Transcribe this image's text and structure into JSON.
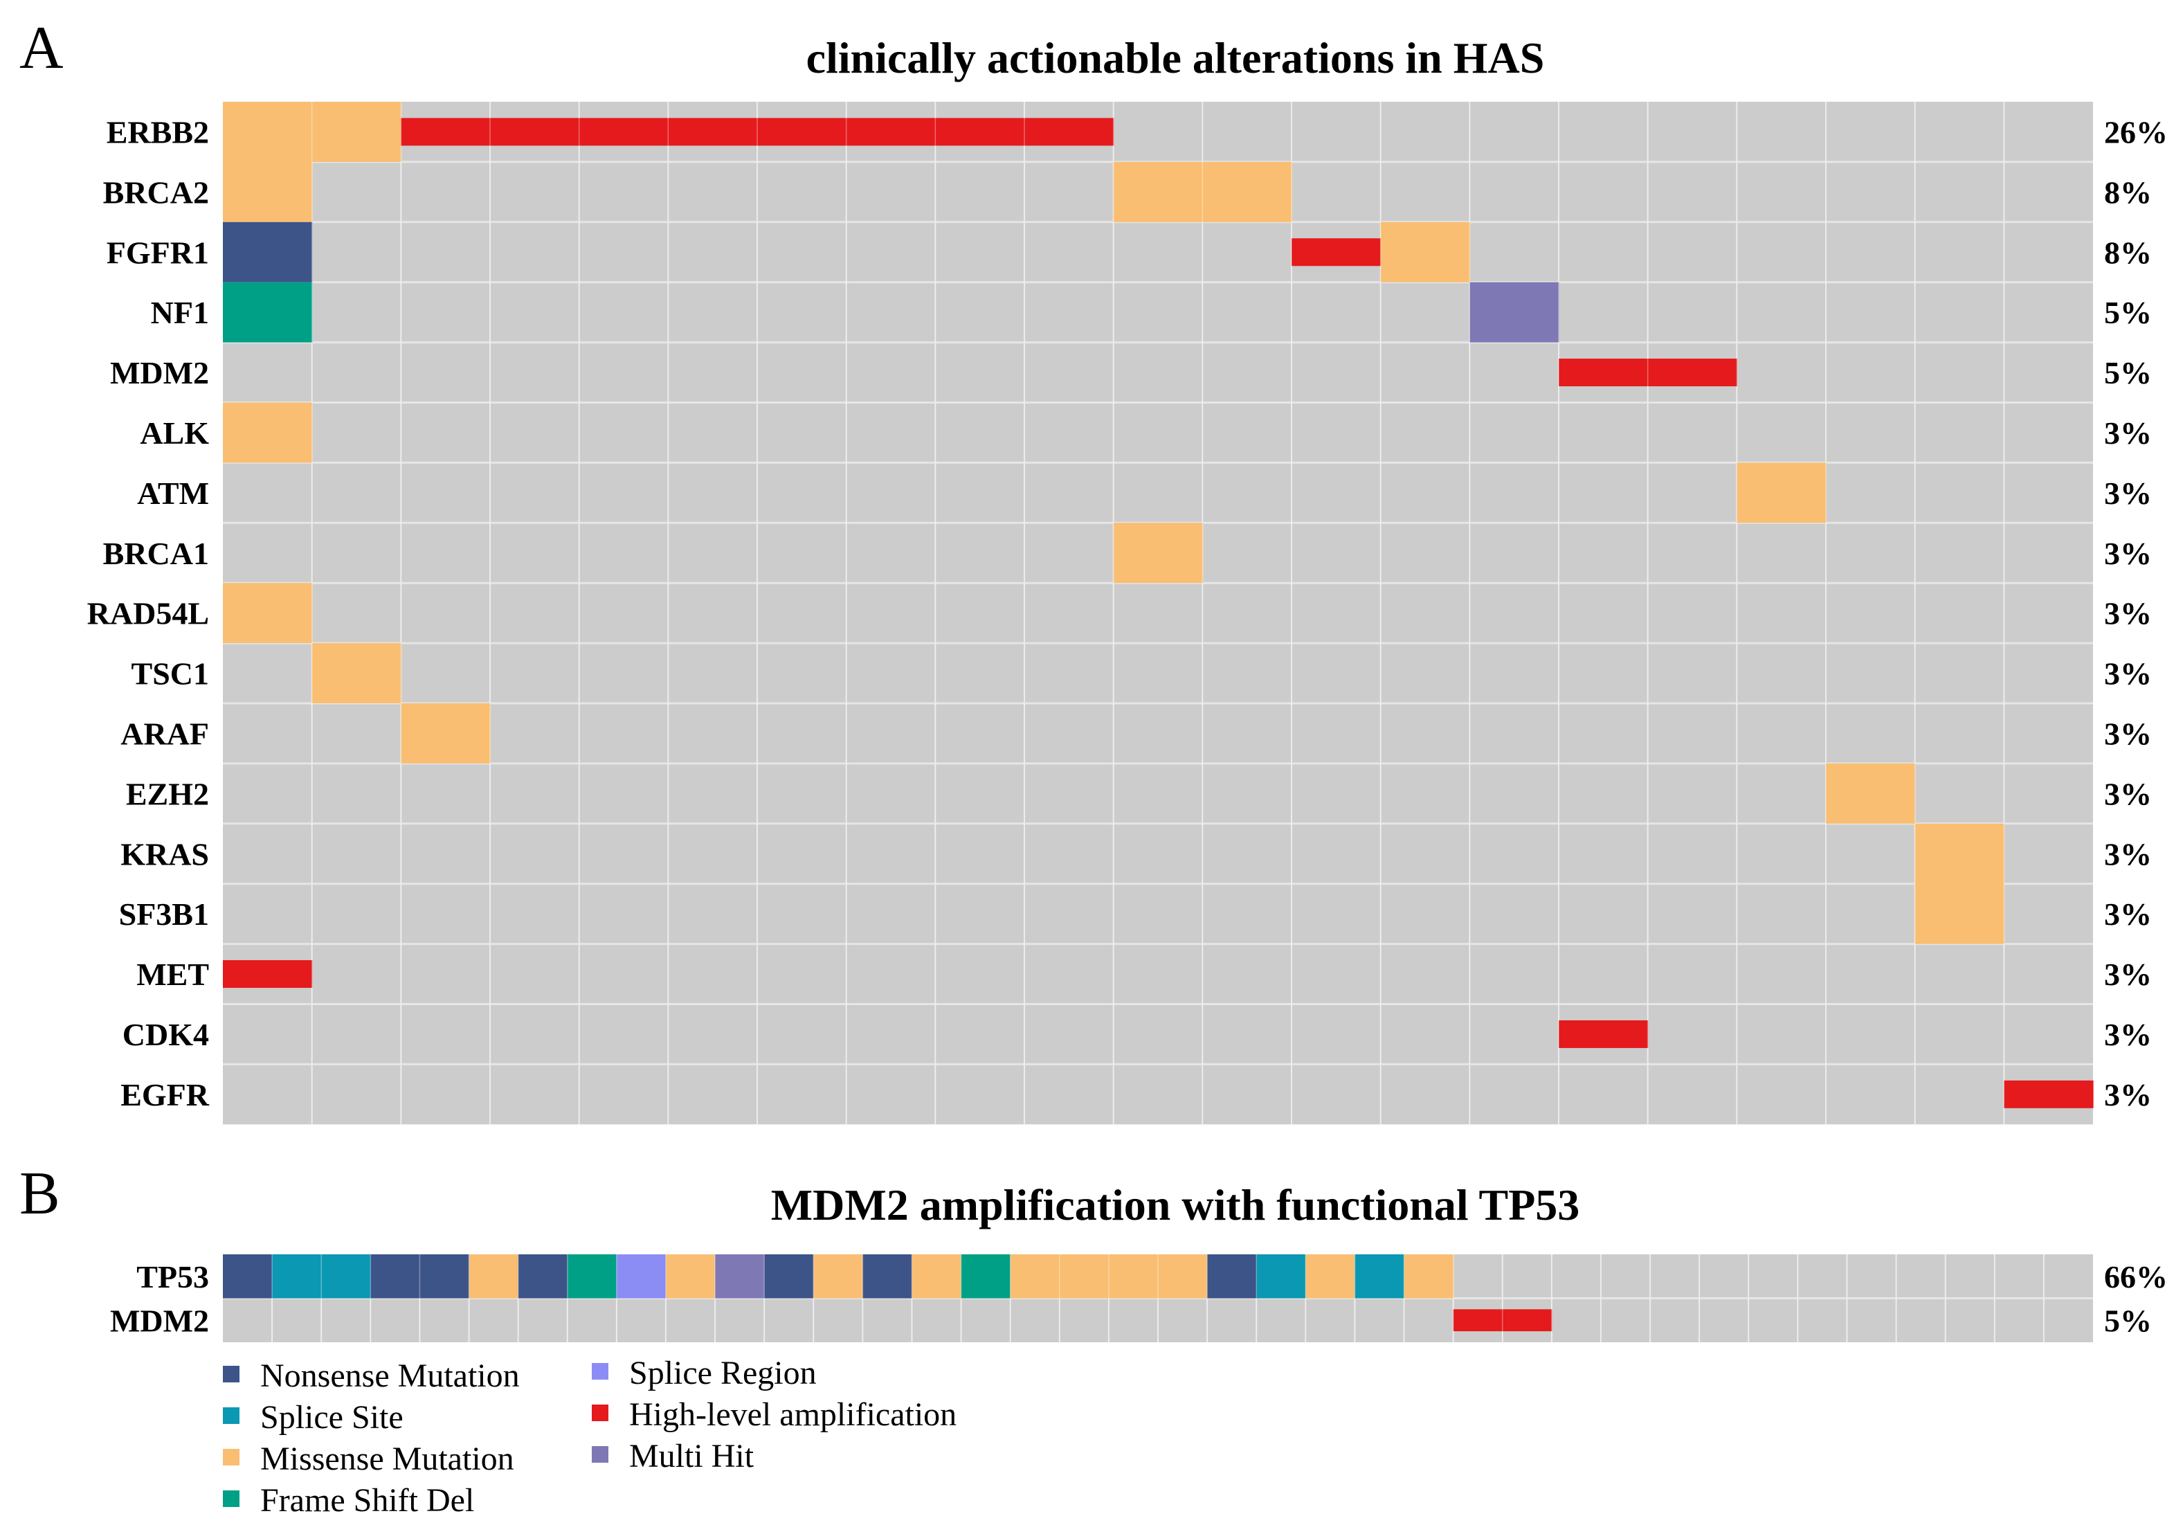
{
  "colors": {
    "background_cell": "#CCCCCC",
    "grid_line": "#E6E6E6",
    "Nonsense Mutation": "#3D5488",
    "Splice Site": "#0A98B3",
    "Missense Mutation": "#F9BE72",
    "Frame Shift Del": "#00A087",
    "Splice Region": "#8C8CF5",
    "High-level amplification": "#E41A1C",
    "Multi Hit": "#7E78B5"
  },
  "chart_data": [
    {
      "type": "heatmap",
      "panel": "A",
      "title": "clinically actionable alterations in HAS",
      "n_samples": 21,
      "genes": [
        {
          "gene": "ERBB2",
          "freq": "26%",
          "alterations": [
            {
              "samples": [
                1,
                2
              ],
              "type": "Missense Mutation",
              "size": "full"
            },
            {
              "samples": [
                3,
                4,
                5,
                6,
                7,
                8,
                9,
                10
              ],
              "type": "High-level amplification",
              "size": "half"
            }
          ]
        },
        {
          "gene": "BRCA2",
          "freq": "8%",
          "alterations": [
            {
              "samples": [
                1,
                11,
                12
              ],
              "type": "Missense Mutation",
              "size": "full"
            }
          ]
        },
        {
          "gene": "FGFR1",
          "freq": "8%",
          "alterations": [
            {
              "samples": [
                1
              ],
              "type": "Nonsense Mutation",
              "size": "full"
            },
            {
              "samples": [
                13
              ],
              "type": "High-level amplification",
              "size": "half"
            },
            {
              "samples": [
                14
              ],
              "type": "Missense Mutation",
              "size": "full"
            }
          ]
        },
        {
          "gene": "NF1",
          "freq": "5%",
          "alterations": [
            {
              "samples": [
                1
              ],
              "type": "Frame Shift Del",
              "size": "full"
            },
            {
              "samples": [
                15
              ],
              "type": "Multi Hit",
              "size": "full"
            }
          ]
        },
        {
          "gene": "MDM2",
          "freq": "5%",
          "alterations": [
            {
              "samples": [
                16,
                17
              ],
              "type": "High-level amplification",
              "size": "half"
            }
          ]
        },
        {
          "gene": "ALK",
          "freq": "3%",
          "alterations": [
            {
              "samples": [
                1
              ],
              "type": "Missense Mutation",
              "size": "full"
            }
          ]
        },
        {
          "gene": "ATM",
          "freq": "3%",
          "alterations": [
            {
              "samples": [
                18
              ],
              "type": "Missense Mutation",
              "size": "full"
            }
          ]
        },
        {
          "gene": "BRCA1",
          "freq": "3%",
          "alterations": [
            {
              "samples": [
                11
              ],
              "type": "Missense Mutation",
              "size": "full"
            }
          ]
        },
        {
          "gene": "RAD54L",
          "freq": "3%",
          "alterations": [
            {
              "samples": [
                1
              ],
              "type": "Missense Mutation",
              "size": "full"
            }
          ]
        },
        {
          "gene": "TSC1",
          "freq": "3%",
          "alterations": [
            {
              "samples": [
                2
              ],
              "type": "Missense Mutation",
              "size": "full"
            }
          ]
        },
        {
          "gene": "ARAF",
          "freq": "3%",
          "alterations": [
            {
              "samples": [
                3
              ],
              "type": "Missense Mutation",
              "size": "full"
            }
          ]
        },
        {
          "gene": "EZH2",
          "freq": "3%",
          "alterations": [
            {
              "samples": [
                19
              ],
              "type": "Missense Mutation",
              "size": "full"
            }
          ]
        },
        {
          "gene": "KRAS",
          "freq": "3%",
          "alterations": [
            {
              "samples": [
                20
              ],
              "type": "Missense Mutation",
              "size": "full"
            }
          ]
        },
        {
          "gene": "SF3B1",
          "freq": "3%",
          "alterations": [
            {
              "samples": [
                20
              ],
              "type": "Missense Mutation",
              "size": "full"
            }
          ]
        },
        {
          "gene": "MET",
          "freq": "3%",
          "alterations": [
            {
              "samples": [
                1
              ],
              "type": "High-level amplification",
              "size": "half"
            }
          ]
        },
        {
          "gene": "CDK4",
          "freq": "3%",
          "alterations": [
            {
              "samples": [
                16
              ],
              "type": "High-level amplification",
              "size": "half"
            }
          ]
        },
        {
          "gene": "EGFR",
          "freq": "3%",
          "alterations": [
            {
              "samples": [
                21
              ],
              "type": "High-level amplification",
              "size": "half"
            }
          ]
        }
      ]
    },
    {
      "type": "heatmap",
      "panel": "B",
      "title": "MDM2 amplification with functional TP53",
      "n_samples": 38,
      "genes": [
        {
          "gene": "TP53",
          "freq": "66%",
          "alterations": [
            {
              "samples": [
                1
              ],
              "type": "Nonsense Mutation",
              "size": "full"
            },
            {
              "samples": [
                2,
                3
              ],
              "type": "Splice Site",
              "size": "full"
            },
            {
              "samples": [
                4,
                5
              ],
              "type": "Nonsense Mutation",
              "size": "full"
            },
            {
              "samples": [
                6
              ],
              "type": "Missense Mutation",
              "size": "full"
            },
            {
              "samples": [
                7
              ],
              "type": "Nonsense Mutation",
              "size": "full"
            },
            {
              "samples": [
                8
              ],
              "type": "Frame Shift Del",
              "size": "full"
            },
            {
              "samples": [
                9
              ],
              "type": "Splice Region",
              "size": "full"
            },
            {
              "samples": [
                10
              ],
              "type": "Missense Mutation",
              "size": "full"
            },
            {
              "samples": [
                11
              ],
              "type": "Multi Hit",
              "size": "full"
            },
            {
              "samples": [
                12
              ],
              "type": "Nonsense Mutation",
              "size": "full"
            },
            {
              "samples": [
                13
              ],
              "type": "Missense Mutation",
              "size": "full"
            },
            {
              "samples": [
                14
              ],
              "type": "Nonsense Mutation",
              "size": "full"
            },
            {
              "samples": [
                15
              ],
              "type": "Missense Mutation",
              "size": "full"
            },
            {
              "samples": [
                16
              ],
              "type": "Frame Shift Del",
              "size": "full"
            },
            {
              "samples": [
                17,
                18,
                19,
                20
              ],
              "type": "Missense Mutation",
              "size": "full"
            },
            {
              "samples": [
                21
              ],
              "type": "Nonsense Mutation",
              "size": "full"
            },
            {
              "samples": [
                22
              ],
              "type": "Splice Site",
              "size": "full"
            },
            {
              "samples": [
                23
              ],
              "type": "Missense Mutation",
              "size": "full"
            },
            {
              "samples": [
                24
              ],
              "type": "Splice Site",
              "size": "full"
            },
            {
              "samples": [
                25
              ],
              "type": "Missense Mutation",
              "size": "full"
            }
          ]
        },
        {
          "gene": "MDM2",
          "freq": "5%",
          "alterations": [
            {
              "samples": [
                26,
                27
              ],
              "type": "High-level amplification",
              "size": "half"
            }
          ]
        }
      ]
    }
  ],
  "legend": [
    {
      "label": "Nonsense Mutation",
      "column": 1
    },
    {
      "label": "Splice Site",
      "column": 1
    },
    {
      "label": "Missense Mutation",
      "column": 1
    },
    {
      "label": "Frame Shift Del",
      "column": 1
    },
    {
      "label": "Splice Region",
      "column": 2
    },
    {
      "label": "High-level amplification",
      "column": 2
    },
    {
      "label": "Multi Hit",
      "column": 2
    }
  ]
}
